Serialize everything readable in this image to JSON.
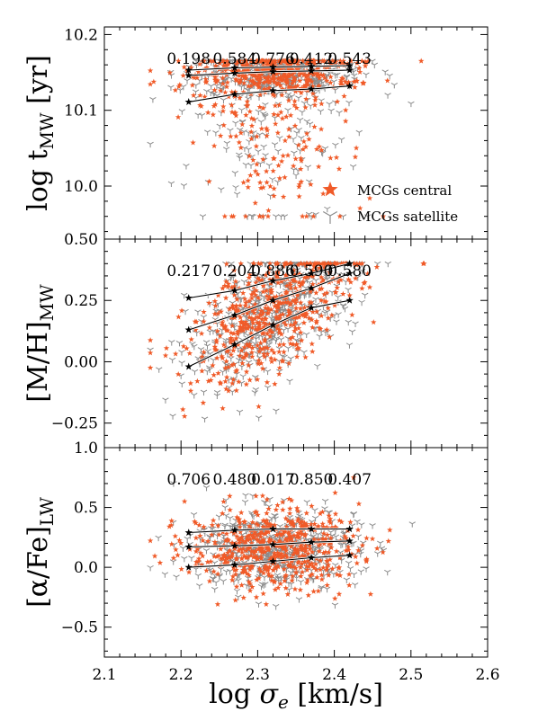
{
  "chart_data": {
    "type": "scatter",
    "xlabel": "log σe [km/s]",
    "xlim": [
      2.1,
      2.6
    ],
    "xticks": [
      "2.1",
      "2.2",
      "2.3",
      "2.4",
      "2.5",
      "2.6"
    ],
    "colors": {
      "central": "#f05a28",
      "satellite": "#8c8c8c",
      "median": "#000000"
    },
    "legend": {
      "placement": "middle-right",
      "entries": [
        "MCGs central",
        "MCGs satellite"
      ]
    },
    "bin_centers": [
      2.21,
      2.27,
      2.32,
      2.37,
      2.42
    ],
    "panels": [
      {
        "ylabel_main": "log t",
        "ylabel_sub": "MW",
        "ylabel_unit": " [yr]",
        "ylim": [
          9.93,
          10.21
        ],
        "yticks": [
          {
            "value": 10.0,
            "label": "10.0"
          },
          {
            "value": 10.1,
            "label": "10.1"
          },
          {
            "value": 10.2,
            "label": "10.2"
          }
        ],
        "pvalues": [
          "0.198",
          "0.584",
          "0.776",
          "0.412",
          "0.543"
        ],
        "lines": {
          "p84": [
            10.153,
            10.156,
            10.157,
            10.158,
            10.159
          ],
          "p50": [
            10.146,
            10.149,
            10.151,
            10.152,
            10.153
          ],
          "p16": [
            10.111,
            10.121,
            10.126,
            10.128,
            10.132
          ]
        },
        "scatter": {
          "center": 10.15,
          "spread": 0.015,
          "tail": 0.1,
          "min": 9.96,
          "max": 10.165
        }
      },
      {
        "ylabel_main": "[M/H]",
        "ylabel_sub": "MW",
        "ylabel_unit": "",
        "ylim": [
          -0.35,
          0.5
        ],
        "yticks": [
          {
            "value": -0.25,
            "label": "−0.25"
          },
          {
            "value": 0.0,
            "label": "0.00"
          },
          {
            "value": 0.25,
            "label": "0.25"
          },
          {
            "value": 0.5,
            "label": "0.50"
          }
        ],
        "pvalues": [
          "0.217",
          "0.204",
          "0.886",
          "0.590",
          "0.580"
        ],
        "lines": {
          "p84": [
            0.26,
            0.29,
            0.33,
            0.36,
            0.4
          ],
          "p50": [
            0.13,
            0.19,
            0.25,
            0.3,
            0.36
          ],
          "p16": [
            -0.02,
            0.07,
            0.15,
            0.22,
            0.25
          ]
        },
        "scatter": {
          "center": 0.2,
          "spread": 0.12,
          "tail": 0.0,
          "min": -0.33,
          "max": 0.4
        }
      },
      {
        "ylabel_main": "[α/Fe]",
        "ylabel_sub": "LW",
        "ylabel_unit": "",
        "ylim": [
          -0.75,
          1.0
        ],
        "yticks": [
          {
            "value": -0.5,
            "label": "−0.5"
          },
          {
            "value": 0.0,
            "label": "0.0"
          },
          {
            "value": 0.5,
            "label": "0.5"
          },
          {
            "value": 1.0,
            "label": "1.0"
          }
        ],
        "pvalues": [
          "0.706",
          "0.480",
          "0.017",
          "0.850",
          "0.407"
        ],
        "lines": {
          "p84": [
            0.29,
            0.31,
            0.32,
            0.32,
            0.32
          ],
          "p50": [
            0.17,
            0.18,
            0.19,
            0.21,
            0.22
          ],
          "p16": [
            0.0,
            0.02,
            0.05,
            0.08,
            0.1
          ]
        },
        "scatter": {
          "center": 0.16,
          "spread": 0.17,
          "tail": 0.0,
          "min": -0.72,
          "max": 0.75
        }
      }
    ]
  }
}
